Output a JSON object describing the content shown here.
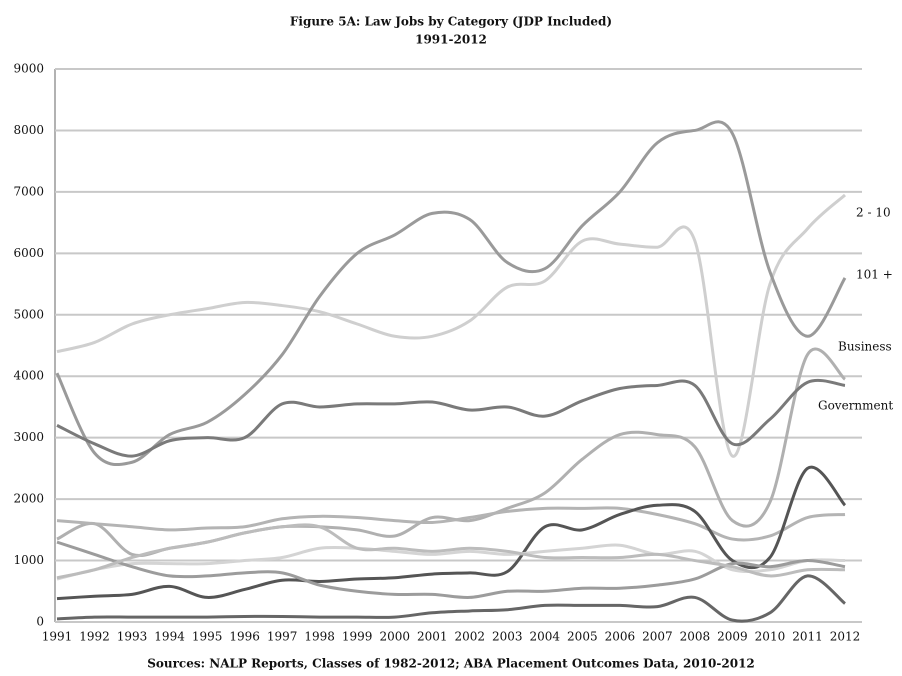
{
  "chart_data": {
    "type": "line",
    "title": "Figure 5A: Law Jobs by Category (JDP Included)",
    "subtitle": "1991-2012",
    "source": "Sources: NALP Reports, Classes of 1982-2012; ABA Placement Outcomes Data, 2010-2012",
    "categories": [
      "1991",
      "1992",
      "1993",
      "1994",
      "1995",
      "1996",
      "1997",
      "1998",
      "1999",
      "2000",
      "2001",
      "2002",
      "2003",
      "2004",
      "2005",
      "2006",
      "2007",
      "2008",
      "2009",
      "2010",
      "2011",
      "2012"
    ],
    "ylim": [
      0,
      9000
    ],
    "yticks": [
      0,
      1000,
      2000,
      3000,
      4000,
      5000,
      6000,
      7000,
      8000,
      9000
    ],
    "grid": true,
    "series": [
      {
        "name": "2 - 10",
        "color": "#cfcfcf",
        "values": [
          4400,
          4550,
          4850,
          5000,
          5100,
          5200,
          5150,
          5050,
          4850,
          4650,
          4650,
          4900,
          5450,
          5550,
          6200,
          6150,
          6100,
          6200,
          2700,
          5500,
          6400,
          6950
        ]
      },
      {
        "name": "101 +",
        "color": "#9a9a9a",
        "values": [
          4050,
          2750,
          2600,
          3050,
          3250,
          3700,
          4350,
          5300,
          6000,
          6300,
          6650,
          6550,
          5850,
          5750,
          6450,
          7000,
          7800,
          8000,
          7950,
          5700,
          4650,
          5600
        ]
      },
      {
        "name": "Business",
        "color": "#b0b0b0",
        "values": [
          1350,
          1600,
          1100,
          1200,
          1300,
          1450,
          1550,
          1550,
          1500,
          1400,
          1700,
          1650,
          1850,
          2100,
          2650,
          3050,
          3050,
          2850,
          1650,
          1950,
          4350,
          3950
        ]
      },
      {
        "name": "Government",
        "color": "#7a7a7a",
        "values": [
          3200,
          2900,
          2700,
          2950,
          3000,
          3000,
          3550,
          3500,
          3550,
          3550,
          3580,
          3450,
          3500,
          3350,
          3600,
          3800,
          3850,
          3850,
          2900,
          3300,
          3900,
          3850
        ]
      },
      {
        "color": "#b4b4b4",
        "values": [
          1650,
          1600,
          1550,
          1500,
          1530,
          1550,
          1680,
          1720,
          1700,
          1650,
          1620,
          1700,
          1800,
          1850,
          1850,
          1850,
          1750,
          1600,
          1350,
          1400,
          1700,
          1750
        ]
      },
      {
        "color": "#555555",
        "values": [
          380,
          420,
          450,
          580,
          400,
          530,
          680,
          660,
          700,
          720,
          780,
          800,
          820,
          1550,
          1500,
          1750,
          1900,
          1800,
          1000,
          1050,
          2500,
          1900
        ]
      },
      {
        "color": "#d4d4d4",
        "values": [
          700,
          850,
          950,
          950,
          950,
          1000,
          1050,
          1200,
          1200,
          1150,
          1100,
          1150,
          1100,
          1150,
          1200,
          1250,
          1100,
          1150,
          850,
          850,
          1000,
          1000
        ]
      },
      {
        "color": "#9c9c9c",
        "values": [
          1300,
          1100,
          900,
          750,
          750,
          800,
          800,
          600,
          500,
          450,
          450,
          400,
          500,
          500,
          550,
          550,
          600,
          700,
          950,
          900,
          1000,
          900
        ]
      },
      {
        "color": "#bcbcbc",
        "values": [
          720,
          850,
          1050,
          1200,
          1300,
          1450,
          1550,
          1550,
          1200,
          1200,
          1150,
          1200,
          1150,
          1050,
          1050,
          1050,
          1100,
          1000,
          900,
          750,
          850,
          850
        ]
      },
      {
        "color": "#666666",
        "values": [
          50,
          80,
          80,
          80,
          80,
          90,
          90,
          80,
          80,
          80,
          150,
          180,
          200,
          270,
          270,
          270,
          250,
          400,
          30,
          150,
          750,
          300
        ]
      }
    ]
  }
}
